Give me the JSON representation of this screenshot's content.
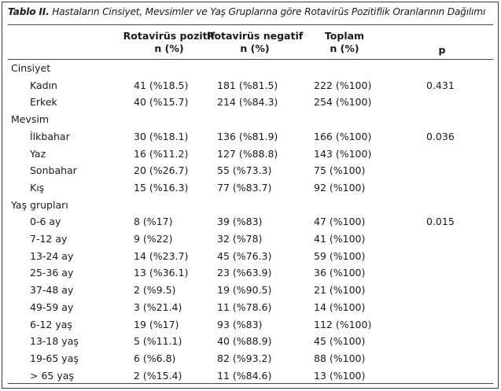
{
  "table": {
    "caption_label": "Tablo II.",
    "caption_text": "Hastaların Cinsiyet, Mevsimler ve Yaş Gruplarına göre Rotavirüs Pozitiflik Oranlarının Dağılımı",
    "headers": {
      "pos": [
        "Rotavirüs pozitif",
        "n (%)"
      ],
      "neg": [
        "Rotavirüs negatif",
        "n (%)"
      ],
      "total": [
        "Toplam",
        "n (%)"
      ],
      "p": "p"
    },
    "groups": [
      {
        "name": "Cinsiyet",
        "rows": [
          {
            "label": "Kadın",
            "pos": "41 (%18.5)",
            "neg": "181 (%81.5)",
            "total": "222 (%100)",
            "p": "0.431"
          },
          {
            "label": "Erkek",
            "pos": "40 (%15.7)",
            "neg": "214 (%84.3)",
            "total": "254 (%100)",
            "p": ""
          }
        ]
      },
      {
        "name": "Mevsim",
        "rows": [
          {
            "label": "İlkbahar",
            "pos": "30 (%18.1)",
            "neg": "136 (%81.9)",
            "total": "166 (%100)",
            "p": "0.036"
          },
          {
            "label": "Yaz",
            "pos": "16 (%11.2)",
            "neg": "127 (%88.8)",
            "total": "143 (%100)",
            "p": ""
          },
          {
            "label": "Sonbahar",
            "pos": "20 (%26.7)",
            "neg": "55 (%73.3)",
            "total": "75 (%100)",
            "p": ""
          },
          {
            "label": "Kış",
            "pos": "15 (%16.3)",
            "neg": "77 (%83.7)",
            "total": "92 (%100)",
            "p": ""
          }
        ]
      },
      {
        "name": "Yaş grupları",
        "rows": [
          {
            "label": "0-6 ay",
            "pos": "8 (%17)",
            "neg": "39 (%83)",
            "total": "47 (%100)",
            "p": "0.015"
          },
          {
            "label": "7-12 ay",
            "pos": "9 (%22)",
            "neg": "32 (%78)",
            "total": "41 (%100)",
            "p": ""
          },
          {
            "label": "13-24 ay",
            "pos": "14 (%23.7)",
            "neg": "45 (%76.3)",
            "total": "59 (%100)",
            "p": ""
          },
          {
            "label": "25-36 ay",
            "pos": "13 (%36.1)",
            "neg": "23 (%63.9)",
            "total": "36 (%100)",
            "p": ""
          },
          {
            "label": "37-48 ay",
            "pos": "2 (%9.5)",
            "neg": "19 (%90.5)",
            "total": "21 (%100)",
            "p": ""
          },
          {
            "label": "49-59 ay",
            "pos": "3 (%21.4)",
            "neg": "11 (%78.6)",
            "total": "14 (%100)",
            "p": ""
          },
          {
            "label": "6-12 yaş",
            "pos": "19 (%17)",
            "neg": "93 (%83)",
            "total": "112 (%100)",
            "p": ""
          },
          {
            "label": "13-18 yaş",
            "pos": "5 (%11.1)",
            "neg": "40 (%88.9)",
            "total": "45 (%100)",
            "p": ""
          },
          {
            "label": "19-65 yaş",
            "pos": "6 (%6.8)",
            "neg": "82 (%93.2)",
            "total": "88 (%100)",
            "p": ""
          },
          {
            "label": "> 65 yaş",
            "pos": "2 (%15.4)",
            "neg": "11 (%84.6)",
            "total": "13 (%100)",
            "p": ""
          }
        ]
      }
    ]
  }
}
